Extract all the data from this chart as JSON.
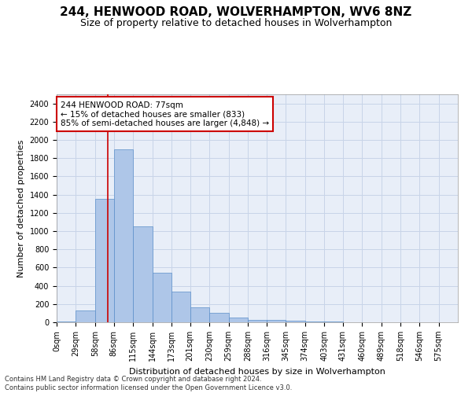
{
  "title1": "244, HENWOOD ROAD, WOLVERHAMPTON, WV6 8NZ",
  "title2": "Size of property relative to detached houses in Wolverhampton",
  "xlabel": "Distribution of detached houses by size in Wolverhampton",
  "ylabel": "Number of detached properties",
  "footer1": "Contains HM Land Registry data © Crown copyright and database right 2024.",
  "footer2": "Contains public sector information licensed under the Open Government Licence v3.0.",
  "annotation_line1": "244 HENWOOD ROAD: 77sqm",
  "annotation_line2": "← 15% of detached houses are smaller (833)",
  "annotation_line3": "85% of semi-detached houses are larger (4,848) →",
  "bar_color": "#aec6e8",
  "bar_edge_color": "#5b8fc9",
  "grid_color": "#c8d4e8",
  "bg_color": "#e8eef8",
  "vline_x": 77,
  "vline_color": "#cc0000",
  "categories": [
    "0sqm",
    "29sqm",
    "58sqm",
    "86sqm",
    "115sqm",
    "144sqm",
    "173sqm",
    "201sqm",
    "230sqm",
    "259sqm",
    "288sqm",
    "316sqm",
    "345sqm",
    "374sqm",
    "403sqm",
    "431sqm",
    "460sqm",
    "489sqm",
    "518sqm",
    "546sqm",
    "575sqm"
  ],
  "bin_edges": [
    0,
    29,
    58,
    86,
    115,
    144,
    173,
    201,
    230,
    259,
    288,
    316,
    345,
    374,
    403,
    431,
    460,
    489,
    518,
    546,
    575,
    604
  ],
  "values": [
    10,
    130,
    1350,
    1900,
    1050,
    540,
    335,
    160,
    100,
    50,
    30,
    25,
    15,
    10,
    5,
    2,
    0,
    2,
    0,
    0,
    2
  ],
  "ylim": [
    0,
    2500
  ],
  "yticks": [
    0,
    200,
    400,
    600,
    800,
    1000,
    1200,
    1400,
    1600,
    1800,
    2000,
    2200,
    2400
  ],
  "annot_box_facecolor": "white",
  "annot_box_edgecolor": "#cc0000",
  "title1_fontsize": 11,
  "title2_fontsize": 9,
  "xlabel_fontsize": 8,
  "ylabel_fontsize": 8,
  "tick_fontsize": 7,
  "footer_fontsize": 6,
  "annot_fontsize": 7.5
}
